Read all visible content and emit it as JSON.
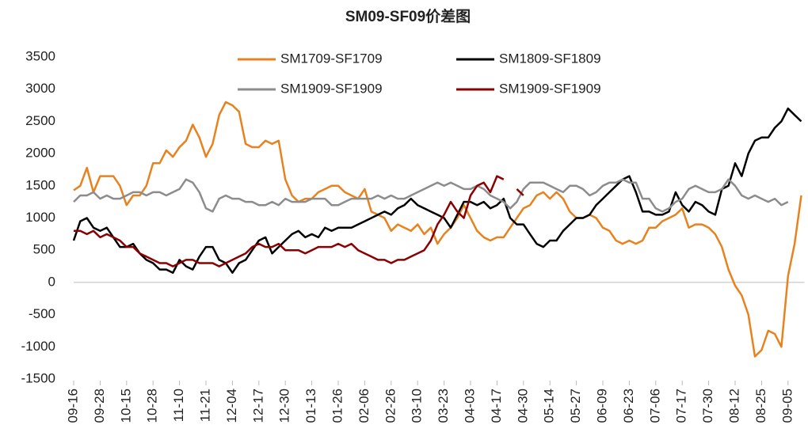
{
  "chart_data": {
    "type": "line",
    "title": "SM09-SF09价差图",
    "categories": [
      "09-16",
      null,
      null,
      null,
      "09-28",
      null,
      null,
      null,
      "10-15",
      null,
      null,
      null,
      "10-28",
      null,
      null,
      null,
      "11-10",
      null,
      null,
      null,
      "11-21",
      null,
      null,
      null,
      "12-04",
      null,
      null,
      null,
      "12-17",
      null,
      null,
      null,
      "12-30",
      null,
      null,
      null,
      "01-13",
      null,
      null,
      null,
      "01-26",
      null,
      null,
      null,
      "02-06",
      null,
      null,
      null,
      "02-26",
      null,
      null,
      null,
      "03-10",
      null,
      null,
      null,
      "03-23",
      null,
      null,
      null,
      "04-03",
      null,
      null,
      null,
      "04-17",
      null,
      null,
      null,
      "04-30",
      null,
      null,
      null,
      "05-14",
      null,
      null,
      null,
      "05-27",
      null,
      null,
      null,
      "06-09",
      null,
      null,
      null,
      "06-23",
      null,
      null,
      null,
      "07-06",
      null,
      null,
      null,
      "07-17",
      null,
      null,
      null,
      "07-30",
      null,
      null,
      null,
      "08-12",
      null,
      null,
      null,
      "08-25",
      null,
      null,
      null,
      "09-05",
      null,
      null
    ],
    "series": [
      {
        "name": "SM1709-SF1709",
        "color": "#e8821e",
        "values": [
          1430,
          1500,
          1780,
          1400,
          1650,
          1650,
          1650,
          1500,
          1200,
          1350,
          1350,
          1500,
          1850,
          1850,
          2050,
          1950,
          2100,
          2200,
          2450,
          2250,
          1950,
          2150,
          2600,
          2800,
          2750,
          2650,
          2150,
          2100,
          2100,
          2200,
          2150,
          2200,
          1600,
          1350,
          1250,
          1300,
          1300,
          1400,
          1450,
          1500,
          1500,
          1400,
          1350,
          1300,
          1450,
          1100,
          1050,
          1000,
          800,
          900,
          850,
          800,
          900,
          750,
          850,
          600,
          750,
          850,
          1000,
          1200,
          1000,
          800,
          700,
          650,
          700,
          700,
          850,
          1000,
          1150,
          1200,
          1350,
          1400,
          1300,
          1400,
          1300,
          1100,
          1000,
          1000,
          1050,
          1000,
          850,
          800,
          650,
          600,
          650,
          600,
          650,
          850,
          850,
          950,
          1000,
          1050,
          1150,
          850,
          900,
          900,
          850,
          750,
          550,
          200,
          -50,
          -200,
          -500,
          -1150,
          -1050,
          -750,
          -800,
          -1000,
          100,
          600,
          1350
        ]
      },
      {
        "name": "SM1809-SF1809",
        "color": "#000000",
        "values": [
          650,
          950,
          1000,
          850,
          800,
          850,
          700,
          550,
          550,
          600,
          450,
          350,
          300,
          200,
          200,
          150,
          350,
          250,
          200,
          400,
          550,
          550,
          350,
          300,
          150,
          300,
          350,
          500,
          650,
          700,
          450,
          550,
          650,
          750,
          800,
          700,
          750,
          700,
          850,
          800,
          850,
          850,
          850,
          900,
          950,
          1000,
          1050,
          1100,
          1050,
          1150,
          1200,
          1300,
          1200,
          1150,
          1100,
          1050,
          1000,
          850,
          1050,
          1250,
          1250,
          1200,
          1250,
          1150,
          1200,
          1300,
          1000,
          900,
          900,
          750,
          600,
          550,
          650,
          650,
          800,
          900,
          1000,
          1000,
          1050,
          1200,
          1300,
          1400,
          1500,
          1600,
          1650,
          1400,
          1100,
          1100,
          1050,
          1050,
          1100,
          1400,
          1200,
          1100,
          1250,
          1200,
          1100,
          1050,
          1450,
          1500,
          1850,
          1650,
          2000,
          2200,
          2250,
          2250,
          2400,
          2500,
          2700,
          2600,
          2500
        ]
      },
      {
        "name": "SM1909-SF1909",
        "color": "#8c8c8c",
        "values": [
          1250,
          1350,
          1350,
          1400,
          1300,
          1350,
          1300,
          1300,
          1350,
          1400,
          1400,
          1350,
          1400,
          1400,
          1350,
          1400,
          1450,
          1600,
          1550,
          1400,
          1150,
          1100,
          1300,
          1350,
          1300,
          1300,
          1250,
          1250,
          1200,
          1200,
          1250,
          1200,
          1300,
          1250,
          1250,
          1250,
          1300,
          1300,
          1300,
          1200,
          1200,
          1250,
          1300,
          1300,
          1300,
          1300,
          1350,
          1300,
          1350,
          1300,
          1300,
          1350,
          1400,
          1450,
          1500,
          1550,
          1500,
          1550,
          1500,
          1450,
          1450,
          1500,
          1450,
          1350,
          1300,
          1250,
          1150,
          1250,
          1450,
          1550,
          1550,
          1550,
          1500,
          1450,
          1400,
          1500,
          1500,
          1450,
          1350,
          1400,
          1500,
          1550,
          1550,
          1600,
          1550,
          1550,
          1300,
          1300,
          1150,
          1100,
          1150,
          1250,
          1300,
          1450,
          1500,
          1450,
          1400,
          1400,
          1450,
          1600,
          1500,
          1350,
          1300,
          1350,
          1300,
          1250,
          1300,
          1200,
          1250,
          null,
          null
        ]
      },
      {
        "name": "SM1909-SF1909",
        "color": "#8b0000",
        "values": [
          800,
          800,
          750,
          800,
          700,
          750,
          700,
          650,
          550,
          550,
          450,
          400,
          350,
          300,
          300,
          250,
          300,
          350,
          350,
          300,
          300,
          300,
          250,
          300,
          350,
          400,
          450,
          550,
          600,
          550,
          550,
          600,
          500,
          500,
          500,
          450,
          500,
          550,
          550,
          550,
          600,
          550,
          600,
          500,
          450,
          400,
          350,
          350,
          300,
          350,
          350,
          400,
          450,
          500,
          650,
          900,
          1050,
          1250,
          1100,
          1000,
          1350,
          1500,
          1550,
          1400,
          1650,
          1600,
          null,
          1450,
          1350,
          null,
          null,
          null,
          null,
          null,
          null,
          null,
          null,
          null,
          null,
          null,
          null,
          null,
          null,
          null,
          null,
          null,
          null,
          null,
          null,
          null,
          null,
          null,
          null,
          null,
          null,
          null,
          null,
          null,
          null,
          null,
          null,
          null,
          null,
          null,
          null,
          null,
          null,
          null,
          null,
          null,
          null
        ]
      }
    ],
    "ylim": [
      -1500,
      3500
    ],
    "yticks": [
      -1500,
      -1000,
      -500,
      0,
      500,
      1000,
      1500,
      2000,
      2500,
      3000,
      3500
    ],
    "grid": false,
    "legend": "top"
  }
}
